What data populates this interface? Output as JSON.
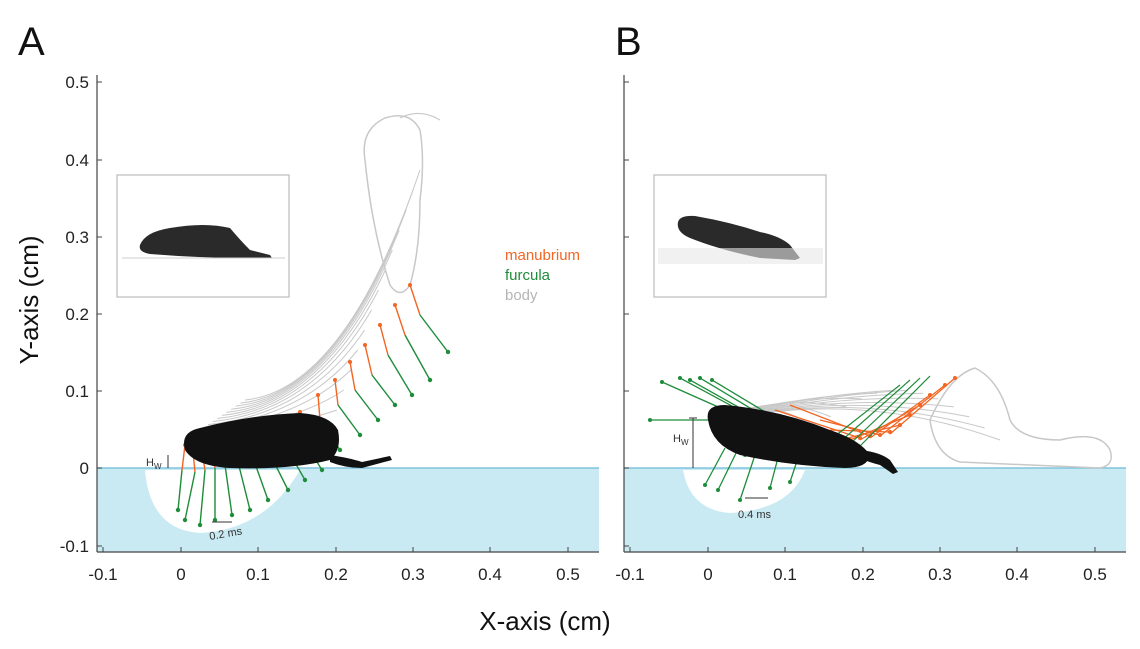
{
  "panels": [
    {
      "letter": "A",
      "time_scale": "0.2 ms",
      "hw_label": "H",
      "hw_sub": "W"
    },
    {
      "letter": "B",
      "time_scale": "0.4 ms",
      "hw_label": "H",
      "hw_sub": "W"
    }
  ],
  "axes": {
    "x_title": "X-axis (cm)",
    "y_title": "Y-axis (cm)",
    "x_ticks": [
      "-0.1",
      "0",
      "0.1",
      "0.2",
      "0.3",
      "0.4",
      "0.5"
    ],
    "y_ticks": [
      "0.5",
      "0.4",
      "0.3",
      "0.2",
      "0.1",
      "0",
      "-0.1"
    ]
  },
  "legend": [
    {
      "label": "manubrium",
      "color": "#f26522"
    },
    {
      "label": "furcula",
      "color": "#1e8c3a"
    },
    {
      "label": "body",
      "color": "#b5b5b5"
    }
  ],
  "colors": {
    "water": "#c9eaf3",
    "manubrium": "#f26522",
    "furcula": "#1e8c3a",
    "body": "#c8c8c8"
  }
}
